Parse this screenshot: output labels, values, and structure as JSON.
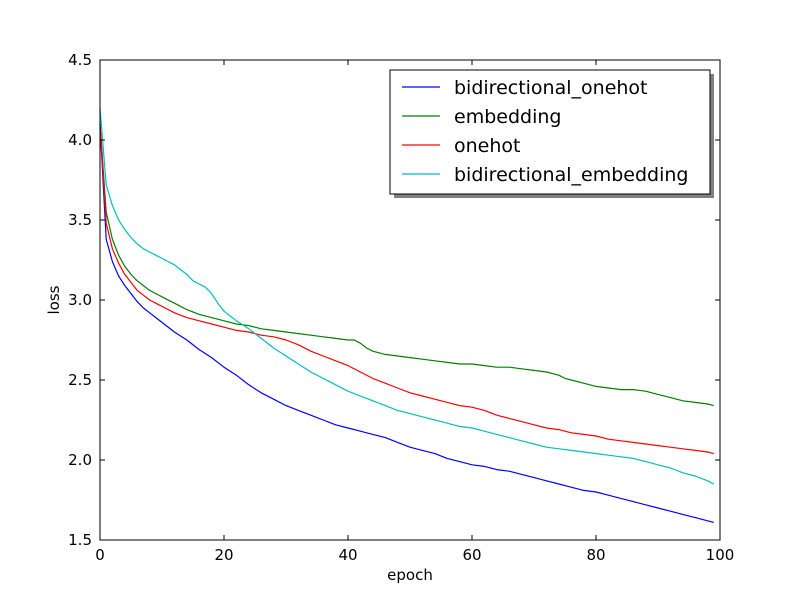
{
  "chart_data": {
    "type": "line",
    "title": "",
    "xlabel": "epoch",
    "ylabel": "loss",
    "xlim": [
      0,
      100
    ],
    "ylim": [
      1.5,
      4.5
    ],
    "xticks": [
      0,
      20,
      40,
      60,
      80,
      100
    ],
    "yticks": [
      1.5,
      2.0,
      2.5,
      3.0,
      3.5,
      4.0,
      4.5
    ],
    "xtick_labels": [
      "0",
      "20",
      "40",
      "60",
      "80",
      "100"
    ],
    "ytick_labels": [
      "1.5",
      "2.0",
      "2.5",
      "3.0",
      "3.5",
      "4.0",
      "4.5"
    ],
    "grid": false,
    "legend_position": "top-right",
    "series": [
      {
        "name": "bidirectional_onehot",
        "color": "#0000ff",
        "x": [
          0,
          1,
          2,
          3,
          4,
          5,
          6,
          7,
          8,
          9,
          10,
          12,
          14,
          16,
          18,
          20,
          22,
          24,
          26,
          28,
          30,
          32,
          34,
          36,
          38,
          40,
          42,
          44,
          46,
          48,
          50,
          52,
          54,
          56,
          58,
          60,
          62,
          64,
          66,
          68,
          70,
          72,
          74,
          76,
          78,
          80,
          82,
          84,
          86,
          88,
          90,
          92,
          94,
          96,
          98,
          99
        ],
        "y": [
          4.1,
          3.38,
          3.24,
          3.15,
          3.09,
          3.04,
          2.99,
          2.95,
          2.92,
          2.89,
          2.86,
          2.8,
          2.75,
          2.69,
          2.64,
          2.58,
          2.53,
          2.47,
          2.42,
          2.38,
          2.34,
          2.31,
          2.28,
          2.25,
          2.22,
          2.2,
          2.18,
          2.16,
          2.14,
          2.11,
          2.08,
          2.06,
          2.04,
          2.01,
          1.99,
          1.97,
          1.96,
          1.94,
          1.93,
          1.91,
          1.89,
          1.87,
          1.85,
          1.83,
          1.81,
          1.8,
          1.78,
          1.76,
          1.74,
          1.72,
          1.7,
          1.68,
          1.66,
          1.64,
          1.62,
          1.61
        ]
      },
      {
        "name": "embedding",
        "color": "#008000",
        "x": [
          0,
          1,
          2,
          3,
          4,
          5,
          6,
          7,
          8,
          9,
          10,
          12,
          14,
          16,
          18,
          20,
          22,
          24,
          26,
          28,
          30,
          32,
          34,
          36,
          38,
          40,
          41,
          42,
          43,
          44,
          46,
          48,
          50,
          52,
          54,
          56,
          58,
          60,
          62,
          64,
          66,
          68,
          70,
          72,
          73,
          74,
          75,
          76,
          78,
          80,
          82,
          84,
          86,
          88,
          90,
          92,
          94,
          96,
          98,
          99
        ],
        "y": [
          4.1,
          3.55,
          3.38,
          3.28,
          3.21,
          3.16,
          3.12,
          3.09,
          3.06,
          3.04,
          3.02,
          2.98,
          2.94,
          2.91,
          2.89,
          2.87,
          2.85,
          2.84,
          2.82,
          2.81,
          2.8,
          2.79,
          2.78,
          2.77,
          2.76,
          2.75,
          2.75,
          2.73,
          2.7,
          2.68,
          2.66,
          2.65,
          2.64,
          2.63,
          2.62,
          2.61,
          2.6,
          2.6,
          2.59,
          2.58,
          2.58,
          2.57,
          2.56,
          2.55,
          2.54,
          2.53,
          2.51,
          2.5,
          2.48,
          2.46,
          2.45,
          2.44,
          2.44,
          2.43,
          2.41,
          2.39,
          2.37,
          2.36,
          2.35,
          2.34
        ]
      },
      {
        "name": "onehot",
        "color": "#ff0000",
        "x": [
          0,
          1,
          2,
          3,
          4,
          5,
          6,
          7,
          8,
          9,
          10,
          12,
          14,
          16,
          18,
          20,
          22,
          24,
          26,
          28,
          30,
          32,
          34,
          36,
          38,
          40,
          42,
          44,
          46,
          48,
          50,
          52,
          54,
          56,
          58,
          60,
          62,
          64,
          66,
          68,
          70,
          72,
          74,
          76,
          78,
          80,
          82,
          84,
          86,
          88,
          90,
          92,
          94,
          96,
          98,
          99
        ],
        "y": [
          4.1,
          3.48,
          3.32,
          3.23,
          3.16,
          3.11,
          3.06,
          3.03,
          3.0,
          2.98,
          2.96,
          2.92,
          2.89,
          2.87,
          2.85,
          2.83,
          2.81,
          2.8,
          2.78,
          2.77,
          2.75,
          2.72,
          2.68,
          2.65,
          2.62,
          2.59,
          2.55,
          2.51,
          2.48,
          2.45,
          2.42,
          2.4,
          2.38,
          2.36,
          2.34,
          2.33,
          2.31,
          2.28,
          2.26,
          2.24,
          2.22,
          2.2,
          2.19,
          2.17,
          2.16,
          2.15,
          2.13,
          2.12,
          2.11,
          2.1,
          2.09,
          2.08,
          2.07,
          2.06,
          2.05,
          2.04
        ]
      },
      {
        "name": "bidirectional_embedding",
        "color": "#00bfbf",
        "x": [
          0,
          1,
          2,
          3,
          4,
          5,
          6,
          7,
          8,
          9,
          10,
          11,
          12,
          13,
          14,
          15,
          16,
          17,
          18,
          19,
          20,
          22,
          24,
          26,
          28,
          30,
          32,
          34,
          36,
          38,
          40,
          42,
          44,
          46,
          48,
          50,
          52,
          54,
          56,
          58,
          60,
          62,
          64,
          66,
          68,
          70,
          72,
          74,
          76,
          78,
          80,
          82,
          84,
          86,
          88,
          90,
          92,
          94,
          96,
          98,
          99
        ],
        "y": [
          4.2,
          3.72,
          3.59,
          3.5,
          3.44,
          3.39,
          3.35,
          3.32,
          3.3,
          3.28,
          3.26,
          3.24,
          3.22,
          3.19,
          3.16,
          3.12,
          3.1,
          3.08,
          3.04,
          2.98,
          2.93,
          2.87,
          2.82,
          2.76,
          2.7,
          2.65,
          2.6,
          2.55,
          2.51,
          2.47,
          2.43,
          2.4,
          2.37,
          2.34,
          2.31,
          2.29,
          2.27,
          2.25,
          2.23,
          2.21,
          2.2,
          2.18,
          2.16,
          2.14,
          2.12,
          2.1,
          2.08,
          2.07,
          2.06,
          2.05,
          2.04,
          2.03,
          2.02,
          2.01,
          1.99,
          1.97,
          1.95,
          1.92,
          1.9,
          1.87,
          1.85
        ]
      }
    ]
  }
}
